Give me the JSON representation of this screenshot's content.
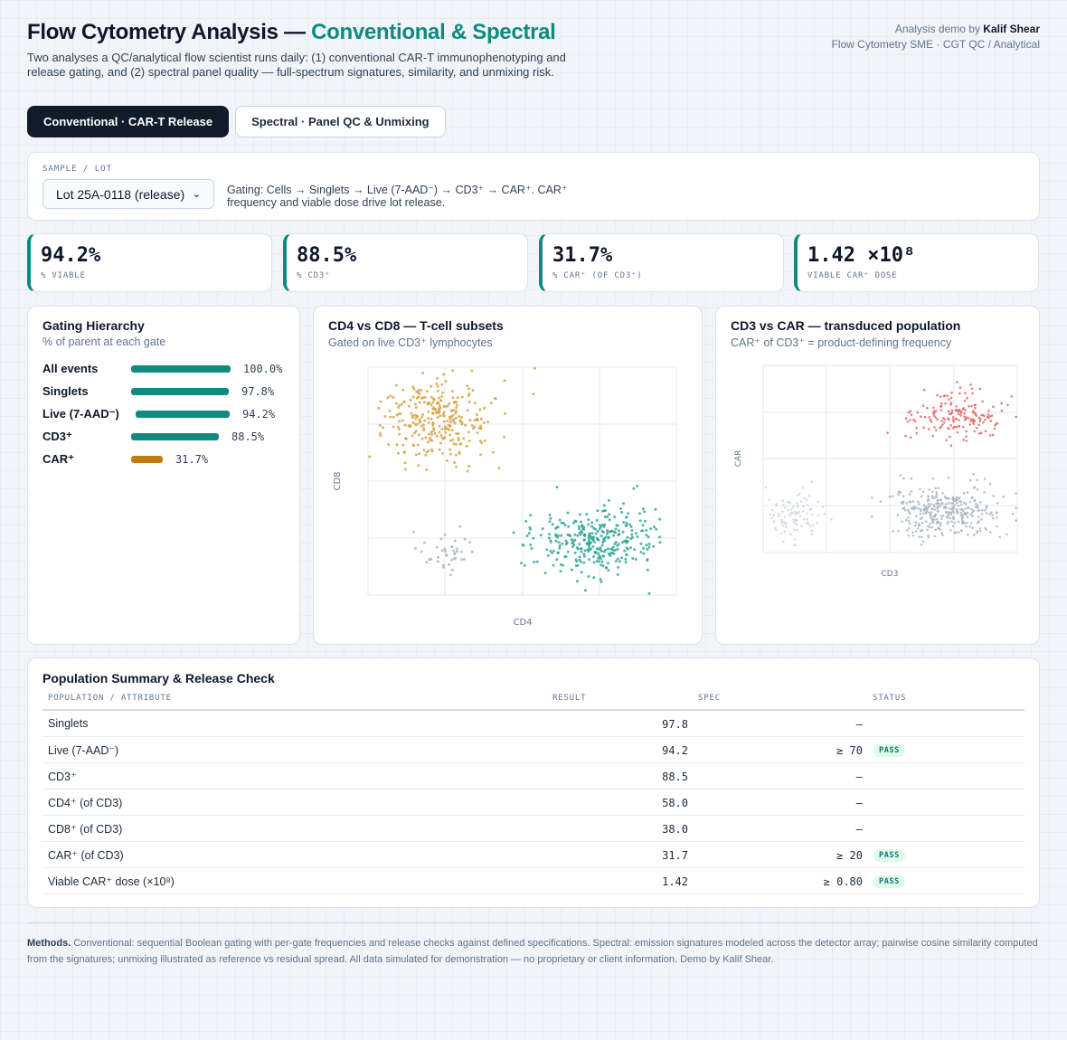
{
  "header": {
    "title_main": "Flow Cytometry Analysis — ",
    "title_accent": "Conventional & Spectral",
    "subtitle": "Two analyses a QC/analytical flow scientist runs daily: (1) conventional CAR-T immunophenotyping and release gating, and (2) spectral panel quality — full-spectrum signatures, similarity, and unmixing risk.",
    "credit_prefix": "Analysis demo by ",
    "credit_name": "Kalif Shear",
    "credit_role": "Flow Cytometry SME · CGT QC / Analytical"
  },
  "tabs": [
    {
      "label": "Conventional · CAR-T Release",
      "active": true
    },
    {
      "label": "Spectral · Panel QC & Unmixing",
      "active": false
    }
  ],
  "sample": {
    "label": "SAMPLE / LOT",
    "selected": "Lot 25A-0118 (release)",
    "description": "Gating: Cells → Singlets → Live (7-AAD⁻) → CD3⁺ → CAR⁺. CAR⁺ frequency and viable dose drive lot release."
  },
  "kpis": [
    {
      "value": "94.2%",
      "label": "% VIABLE"
    },
    {
      "value": "88.5%",
      "label": "% CD3⁺"
    },
    {
      "value": "31.7%",
      "label": "% CAR⁺ (OF CD3⁺)"
    },
    {
      "value": "1.42 ×10⁸",
      "label": "VIABLE CAR⁺ DOSE"
    }
  ],
  "gating": {
    "title": "Gating Hierarchy",
    "subtitle": "% of parent at each gate",
    "gates": [
      {
        "name": "All events",
        "value": 100.0,
        "display": "100.0%",
        "color": "#0f8a7e"
      },
      {
        "name": "Singlets",
        "value": 97.8,
        "display": "97.8%",
        "color": "#0f8a7e"
      },
      {
        "name": "Live (7-AAD⁻)",
        "value": 94.2,
        "display": "94.2%",
        "color": "#0f8a7e"
      },
      {
        "name": "CD3⁺",
        "value": 88.5,
        "display": "88.5%",
        "color": "#0f8a7e"
      },
      {
        "name": "CAR⁺",
        "value": 31.7,
        "display": "31.7%",
        "color": "#c27a12"
      }
    ]
  },
  "cd4cd8": {
    "title": "CD4 vs CD8 — T-cell subsets",
    "subtitle": "Gated on live CD3⁺ lymphocytes",
    "xlabel": "CD4",
    "ylabel": "CD8"
  },
  "cd3car": {
    "title": "CD3 vs CAR — transduced population",
    "subtitle": "CAR⁺ of CD3⁺ = product-defining frequency",
    "xlabel": "CD3",
    "ylabel": "CAR"
  },
  "chart_data": [
    {
      "type": "scatter",
      "title": "CD4 vs CD8 — T-cell subsets",
      "xlabel": "CD4",
      "ylabel": "CD8",
      "series": [
        {
          "color": "#d4a043",
          "cx": 0.22,
          "cy": 0.77,
          "sx": 0.09,
          "sy": 0.09,
          "n": 290
        },
        {
          "color": "#2aa493",
          "cx": 0.74,
          "cy": 0.24,
          "sx": 0.1,
          "sy": 0.07,
          "n": 330
        },
        {
          "color": "#a9b1bf",
          "cx": 0.24,
          "cy": 0.2,
          "sx": 0.05,
          "sy": 0.06,
          "n": 40
        }
      ]
    },
    {
      "type": "scatter",
      "title": "CD3 vs CAR — transduced population",
      "xlabel": "CD3",
      "ylabel": "CAR",
      "series": [
        {
          "color": "#e06060",
          "cx": 0.76,
          "cy": 0.72,
          "sx": 0.09,
          "sy": 0.07,
          "n": 170
        },
        {
          "color": "#a9b1bf",
          "cx": 0.72,
          "cy": 0.22,
          "sx": 0.11,
          "sy": 0.07,
          "n": 330
        },
        {
          "color": "#cdd3dc",
          "cx": 0.13,
          "cy": 0.2,
          "sx": 0.06,
          "sy": 0.06,
          "n": 90
        }
      ]
    }
  ],
  "summary": {
    "title": "Population Summary & Release Check",
    "headers": [
      "POPULATION / ATTRIBUTE",
      "RESULT",
      "SPEC",
      "STATUS"
    ],
    "rows": [
      {
        "name": "Singlets",
        "result": "97.8",
        "spec": "—",
        "status": ""
      },
      {
        "name": "Live (7-AAD⁻)",
        "result": "94.2",
        "spec": "≥ 70",
        "status": "PASS"
      },
      {
        "name": "CD3⁺",
        "result": "88.5",
        "spec": "—",
        "status": ""
      },
      {
        "name": "CD4⁺ (of CD3)",
        "result": "58.0",
        "spec": "—",
        "status": ""
      },
      {
        "name": "CD8⁺ (of CD3)",
        "result": "38.0",
        "spec": "—",
        "status": ""
      },
      {
        "name": "CAR⁺ (of CD3)",
        "result": "31.7",
        "spec": "≥ 20",
        "status": "PASS"
      },
      {
        "name": "Viable CAR⁺ dose (×10⁸)",
        "result": "1.42",
        "spec": "≥ 0.80",
        "status": "PASS"
      }
    ]
  },
  "methods": {
    "label": "Methods.",
    "text": " Conventional: sequential Boolean gating with per-gate frequencies and release checks against defined specifications. Spectral: emission signatures modeled across the detector array; pairwise cosine similarity computed from the signatures; unmixing illustrated as reference vs residual spread. All data simulated for demonstration — no proprietary or client information. Demo by Kalif Shear."
  },
  "colors": {
    "accent": "#0f8a7e",
    "car": "#c27a12",
    "dark": "#111c2b"
  }
}
